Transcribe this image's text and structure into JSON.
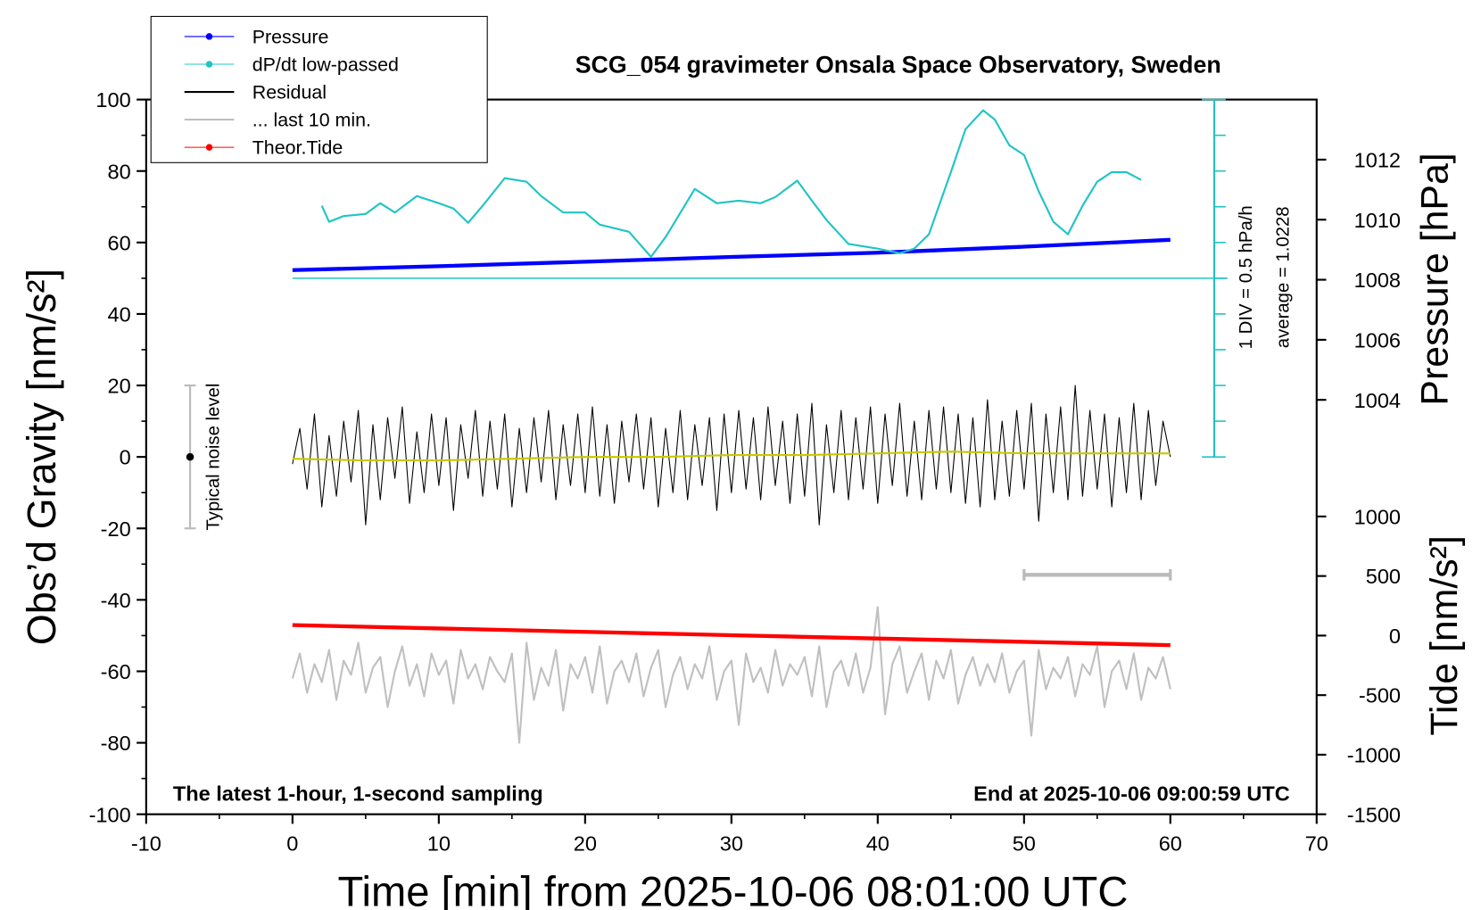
{
  "chart_data": {
    "type": "line",
    "title": "SCG_054 gravimeter Onsala Space Observatory, Sweden",
    "xlabel": "Time [min] from 2025-10-06 08:01:00 UTC",
    "ylabel": "Obs’d Gravity [nm/s²]",
    "y2label": "Pressure [hPa]",
    "y3label": "Tide [nm/s²]",
    "note_left": "The latest 1-hour, 1-second sampling",
    "note_right": "End at 2025-10-06 09:00:59 UTC",
    "xlim": [
      -10,
      70
    ],
    "xticks": [
      -10,
      0,
      10,
      20,
      30,
      40,
      50,
      60,
      70
    ],
    "ylim": [
      -100,
      100
    ],
    "yticks": [
      -100,
      -80,
      -60,
      -40,
      -20,
      0,
      20,
      40,
      60,
      80,
      100
    ],
    "y2lim": [
      990.2,
      1014
    ],
    "y2ticks": [
      1004,
      1006,
      1008,
      1010,
      1012
    ],
    "y3lim": [
      -1500,
      4500
    ],
    "y3ticks": [
      -1500,
      -1000,
      -500,
      0,
      500,
      1000
    ],
    "x": [
      0,
      0.5,
      1,
      1.5,
      2,
      2.5,
      3,
      3.5,
      4,
      4.5,
      5,
      5.5,
      6,
      6.5,
      7,
      7.5,
      8,
      8.5,
      9,
      9.5,
      10,
      10.5,
      11,
      11.5,
      12,
      12.5,
      13,
      13.5,
      14,
      14.5,
      15,
      15.5,
      16,
      16.5,
      17,
      17.5,
      18,
      18.5,
      19,
      19.5,
      20,
      20.5,
      21,
      21.5,
      22,
      22.5,
      23,
      23.5,
      24,
      24.5,
      25,
      25.5,
      26,
      26.5,
      27,
      27.5,
      28,
      28.5,
      29,
      29.5,
      30,
      30.5,
      31,
      31.5,
      32,
      32.5,
      33,
      33.5,
      34,
      34.5,
      35,
      35.5,
      36,
      36.5,
      37,
      37.5,
      38,
      38.5,
      39,
      39.5,
      40,
      40.5,
      41,
      41.5,
      42,
      42.5,
      43,
      43.5,
      44,
      44.5,
      45,
      45.5,
      46,
      46.5,
      47,
      47.5,
      48,
      48.5,
      49,
      49.5,
      50,
      50.5,
      51,
      51.5,
      52,
      52.5,
      53,
      53.5,
      54,
      54.5,
      55,
      55.5,
      56,
      56.5,
      57,
      57.5,
      58,
      58.5,
      59,
      59.5,
      60
    ],
    "series": [
      {
        "name": "Pressure",
        "color": "#0000ff",
        "axis": "y2",
        "marker": true,
        "width": 4,
        "x": [
          0,
          10,
          20,
          30,
          40,
          50,
          60
        ],
        "values": [
          1008.32,
          1008.45,
          1008.6,
          1008.76,
          1008.9,
          1009.1,
          1009.33
        ]
      },
      {
        "name": "dP/dt low-passed",
        "color": "#20c4c4",
        "axis": "y",
        "marker": true,
        "width": 2,
        "x": [
          2,
          2.5,
          3.5,
          5,
          6,
          7,
          8.5,
          10,
          11,
          12,
          13,
          14.5,
          16,
          17,
          18.5,
          20,
          21,
          23,
          24.5,
          25.5,
          27.5,
          29,
          30.5,
          32,
          33,
          34.5,
          35.5,
          36.5,
          38,
          40,
          41.5,
          42.5,
          43.5,
          45,
          46,
          47.2,
          48,
          49,
          50,
          51,
          52,
          53,
          54,
          55,
          56,
          57,
          58
        ],
        "values": [
          70.3,
          65.8,
          67.4,
          68,
          71,
          68.4,
          73,
          71,
          69.5,
          65.5,
          70.3,
          78,
          77,
          73,
          68.4,
          68.4,
          65,
          63,
          56,
          61.5,
          75,
          71,
          71.7,
          71,
          72.7,
          77.3,
          71.7,
          66.3,
          59.6,
          58.3,
          57,
          58.3,
          62.3,
          79.7,
          91.7,
          97,
          94.4,
          87.2,
          84.5,
          74.3,
          65.8,
          62.3,
          70.3,
          77,
          79.7,
          79.7,
          77.5
        ]
      },
      {
        "name": "Residual",
        "color": "#000000",
        "axis": "y",
        "marker": false,
        "width": 1,
        "values": [
          -2,
          8,
          -9,
          12,
          -14,
          6,
          -11,
          10,
          -7,
          13,
          -19,
          9,
          -12,
          11,
          -6,
          14,
          -13,
          7,
          -10,
          12,
          -8,
          11,
          -15,
          9,
          -6,
          13,
          -11,
          10,
          -9,
          12,
          -14,
          8,
          -10,
          11,
          -7,
          13,
          -12,
          9,
          -8,
          12,
          -10,
          14,
          -11,
          9,
          -13,
          10,
          -7,
          12,
          -9,
          11,
          -14,
          8,
          -10,
          13,
          -12,
          9,
          -8,
          11,
          -15,
          12,
          -10,
          13,
          -9,
          11,
          -12,
          14,
          -8,
          10,
          -13,
          12,
          -11,
          15,
          -19,
          9,
          -10,
          13,
          -12,
          11,
          -9,
          14,
          -13,
          12,
          -8,
          15,
          -11,
          10,
          -12,
          13,
          -9,
          14,
          -10,
          12,
          -13,
          11,
          -14,
          16,
          -12,
          10,
          -11,
          13,
          -9,
          15,
          -18,
          12,
          -10,
          14,
          -12,
          20,
          -11,
          13,
          -9,
          12,
          -14,
          11,
          -10,
          15,
          -12,
          13,
          -8,
          10,
          0
        ]
      },
      {
        "color": "#c8c800",
        "axis": "y",
        "marker": false,
        "width": 2,
        "x": [
          0,
          5,
          10,
          15,
          20,
          25,
          30,
          35,
          40,
          45,
          50,
          55,
          60
        ],
        "values": [
          -0.5,
          -1,
          -1,
          -0.5,
          0,
          0,
          0.5,
          0.5,
          1,
          1.5,
          1,
          1,
          1
        ]
      },
      {
        "name": "... last 10 min.",
        "color": "#c0c0c0",
        "axis": "y",
        "marker": false,
        "width": 2,
        "values": [
          -62,
          -55,
          -66,
          -58,
          -63,
          -54,
          -68,
          -57,
          -61,
          -52,
          -66,
          -59,
          -56,
          -70,
          -60,
          -53,
          -64,
          -58,
          -67,
          -55,
          -61,
          -57,
          -69,
          -54,
          -62,
          -58,
          -65,
          -56,
          -60,
          -63,
          -55,
          -80,
          -52,
          -68,
          -59,
          -64,
          -54,
          -71,
          -58,
          -62,
          -56,
          -66,
          -53,
          -69,
          -60,
          -57,
          -63,
          -55,
          -67,
          -59,
          -54,
          -70,
          -61,
          -56,
          -65,
          -58,
          -62,
          -53,
          -68,
          -60,
          -57,
          -75,
          -55,
          -63,
          -59,
          -66,
          -54,
          -64,
          -58,
          -61,
          -56,
          -67,
          -53,
          -70,
          -60,
          -57,
          -64,
          -55,
          -66,
          -59,
          -42,
          -72,
          -58,
          -53,
          -66,
          -60,
          -55,
          -68,
          -57,
          -62,
          -54,
          -69,
          -61,
          -56,
          -64,
          -58,
          -63,
          -55,
          -66,
          -60,
          -57,
          -78,
          -54,
          -65,
          -59,
          -62,
          -56,
          -67,
          -58,
          -61,
          -53,
          -70,
          -60,
          -57,
          -65,
          -55,
          -68,
          -59,
          -62,
          -56,
          -65
        ]
      },
      {
        "name": "Theor.Tide",
        "color": "#ff0000",
        "axis": "y3",
        "marker": true,
        "width": 4,
        "x": [
          0,
          30,
          60
        ],
        "values": [
          88,
          3,
          -80
        ]
      }
    ],
    "noise_bar": {
      "label": "Typical noise level",
      "x": -7,
      "value": 0,
      "error": 20
    },
    "scale_bar": {
      "x": [
        50,
        60
      ],
      "value": -33
    },
    "dpdt_axis": {
      "x": 63,
      "ticks": [
        0,
        10,
        20,
        30,
        40,
        50,
        60,
        70,
        80,
        90,
        100
      ],
      "div_label": "1 DIV = 0.5 hPa/h",
      "average": 50,
      "average_label": "average = 1.0228"
    }
  }
}
